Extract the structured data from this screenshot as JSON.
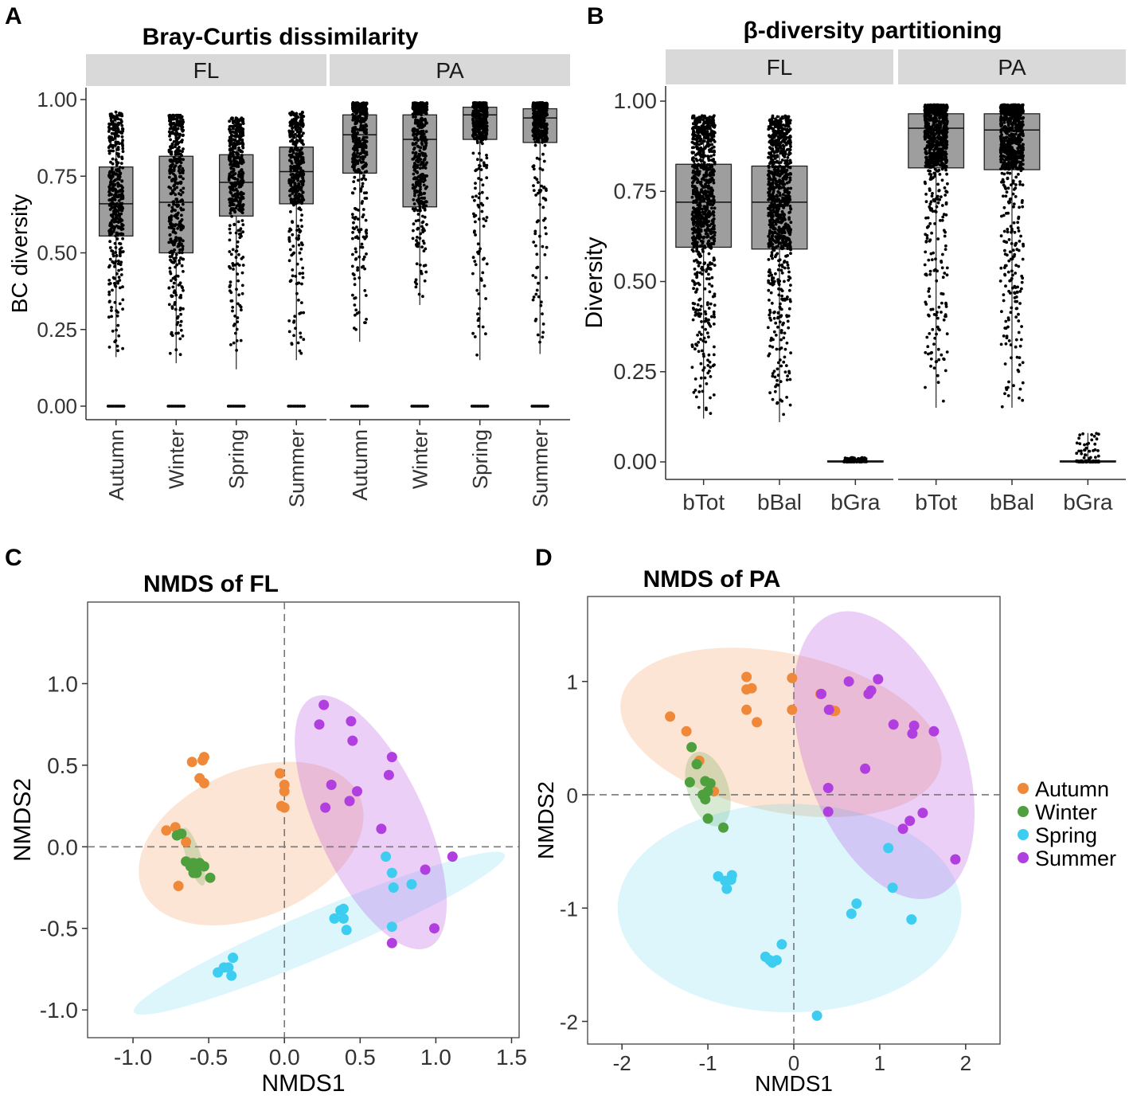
{
  "panels": {
    "A": {
      "letter": "A",
      "title": "Bray-Curtis dissimilarity"
    },
    "B": {
      "letter": "B",
      "title": "β-diversity partitioning"
    },
    "C": {
      "letter": "C",
      "title": "NMDS of FL"
    },
    "D": {
      "letter": "D",
      "title": "NMDS of PA"
    }
  },
  "chart_data": [
    {
      "id": "A",
      "type": "box",
      "title": "Bray-Curtis dissimilarity",
      "ylabel": "BC diversity",
      "xlabel": "",
      "ylim": [
        0,
        1
      ],
      "yticks": [
        "0.00",
        "0.25",
        "0.50",
        "0.75",
        "1.00"
      ],
      "facets": [
        "FL",
        "PA"
      ],
      "categories": [
        "Autumn",
        "Winter",
        "Spring",
        "Summer"
      ],
      "series": [
        {
          "facet": "FL",
          "boxes": [
            {
              "category": "Autumn",
              "q1": 0.555,
              "median": 0.66,
              "q3": 0.78,
              "min": 0.16,
              "max": 0.96,
              "zeros": true
            },
            {
              "category": "Winter",
              "q1": 0.5,
              "median": 0.665,
              "q3": 0.815,
              "min": 0.14,
              "max": 0.95,
              "zeros": true
            },
            {
              "category": "Spring",
              "q1": 0.62,
              "median": 0.73,
              "q3": 0.82,
              "min": 0.12,
              "max": 0.94,
              "zeros": true
            },
            {
              "category": "Summer",
              "q1": 0.66,
              "median": 0.765,
              "q3": 0.845,
              "min": 0.15,
              "max": 0.96,
              "zeros": true
            }
          ]
        },
        {
          "facet": "PA",
          "boxes": [
            {
              "category": "Autumn",
              "q1": 0.76,
              "median": 0.885,
              "q3": 0.95,
              "min": 0.21,
              "max": 0.99,
              "zeros": true
            },
            {
              "category": "Winter",
              "q1": 0.65,
              "median": 0.87,
              "q3": 0.95,
              "min": 0.33,
              "max": 0.99,
              "zeros": true
            },
            {
              "category": "Spring",
              "q1": 0.87,
              "median": 0.95,
              "q3": 0.975,
              "min": 0.15,
              "max": 0.99,
              "zeros": true
            },
            {
              "category": "Summer",
              "q1": 0.86,
              "median": 0.94,
              "q3": 0.97,
              "min": 0.17,
              "max": 0.99,
              "zeros": true
            }
          ]
        }
      ]
    },
    {
      "id": "B",
      "type": "box",
      "title": "β-diversity partitioning",
      "ylabel": "Diversity",
      "xlabel": "",
      "ylim": [
        0,
        1
      ],
      "yticks": [
        "0.00",
        "0.25",
        "0.50",
        "0.75",
        "1.00"
      ],
      "facets": [
        "FL",
        "PA"
      ],
      "categories": [
        "bTot",
        "bBal",
        "bGra"
      ],
      "series": [
        {
          "facet": "FL",
          "boxes": [
            {
              "category": "bTot",
              "q1": 0.595,
              "median": 0.72,
              "q3": 0.825,
              "min": 0.12,
              "max": 0.96
            },
            {
              "category": "bBal",
              "q1": 0.59,
              "median": 0.72,
              "q3": 0.82,
              "min": 0.11,
              "max": 0.96
            },
            {
              "category": "bGra",
              "q1": 0.0,
              "median": 0.0,
              "q3": 0.003,
              "min": 0.0,
              "max": 0.012
            }
          ]
        },
        {
          "facet": "PA",
          "boxes": [
            {
              "category": "bTot",
              "q1": 0.815,
              "median": 0.925,
              "q3": 0.965,
              "min": 0.15,
              "max": 0.99
            },
            {
              "category": "bBal",
              "q1": 0.81,
              "median": 0.92,
              "q3": 0.965,
              "min": 0.15,
              "max": 0.99
            },
            {
              "category": "bGra",
              "q1": 0.0,
              "median": 0.0,
              "q3": 0.003,
              "min": 0.0,
              "max": 0.08
            }
          ]
        }
      ]
    },
    {
      "id": "C",
      "type": "scatter",
      "title": "NMDS of FL",
      "xlabel": "NMDS1",
      "ylabel": "NMDS2",
      "xlim": [
        -1.3,
        1.55
      ],
      "ylim": [
        -1.17,
        1.5
      ],
      "xticks": [
        "-1.0",
        "-0.5",
        "0.0",
        "0.5",
        "1.0",
        "1.5"
      ],
      "yticks": [
        "-1.0",
        "-0.5",
        "0.0",
        "0.5",
        "1.0"
      ],
      "series": [
        {
          "name": "Autumn",
          "color": "#F0883A",
          "ellipse": {
            "cx": -0.22,
            "cy": 0.02,
            "rx": 0.78,
            "ry": 0.45,
            "angle_deg": 23
          },
          "points": [
            [
              -0.61,
              0.52
            ],
            [
              -0.54,
              0.53
            ],
            [
              -0.53,
              0.55
            ],
            [
              -0.56,
              0.42
            ],
            [
              -0.53,
              0.39
            ],
            [
              -0.78,
              0.1
            ],
            [
              -0.72,
              0.12
            ],
            [
              -0.65,
              0.03
            ],
            [
              -0.7,
              -0.24
            ],
            [
              -0.62,
              -0.1
            ],
            [
              -0.03,
              0.45
            ],
            [
              0.0,
              0.38
            ],
            [
              0.0,
              0.34
            ],
            [
              -0.02,
              0.25
            ],
            [
              0.0,
              0.24
            ]
          ]
        },
        {
          "name": "Winter",
          "color": "#4E9F3D",
          "ellipse": {
            "cx": -0.6,
            "cy": -0.06,
            "rx": 0.2,
            "ry": 0.045,
            "angle_deg": -72
          },
          "points": [
            [
              -0.71,
              0.07
            ],
            [
              -0.68,
              0.08
            ],
            [
              -0.65,
              -0.09
            ],
            [
              -0.62,
              -0.12
            ],
            [
              -0.6,
              -0.16
            ],
            [
              -0.58,
              -0.12
            ],
            [
              -0.56,
              -0.1
            ],
            [
              -0.53,
              -0.12
            ],
            [
              -0.49,
              -0.19
            ],
            [
              -0.6,
              -0.1
            ],
            [
              -0.58,
              -0.16
            ]
          ]
        },
        {
          "name": "Spring",
          "color": "#3CCDF0",
          "ellipse": {
            "cx": 0.23,
            "cy": -0.53,
            "rx": 1.33,
            "ry": 0.14,
            "angle_deg": 23
          },
          "points": [
            [
              -0.44,
              -0.77
            ],
            [
              -0.4,
              -0.74
            ],
            [
              -0.37,
              -0.74
            ],
            [
              -0.35,
              -0.79
            ],
            [
              -0.34,
              -0.68
            ],
            [
              0.33,
              -0.44
            ],
            [
              0.37,
              -0.39
            ],
            [
              0.39,
              -0.38
            ],
            [
              0.39,
              -0.44
            ],
            [
              0.41,
              -0.51
            ],
            [
              0.67,
              -0.06
            ],
            [
              0.71,
              -0.16
            ],
            [
              0.72,
              -0.25
            ],
            [
              0.84,
              -0.23
            ],
            [
              0.71,
              -0.49
            ]
          ]
        },
        {
          "name": "Summer",
          "color": "#B13FE0",
          "ellipse": {
            "cx": 0.57,
            "cy": 0.15,
            "rx": 0.91,
            "ry": 0.33,
            "angle_deg": -65
          },
          "points": [
            [
              0.23,
              0.75
            ],
            [
              0.26,
              0.87
            ],
            [
              0.44,
              0.77
            ],
            [
              0.45,
              0.65
            ],
            [
              0.31,
              0.38
            ],
            [
              0.27,
              0.24
            ],
            [
              0.43,
              0.28
            ],
            [
              0.48,
              0.34
            ],
            [
              0.71,
              0.55
            ],
            [
              0.69,
              0.44
            ],
            [
              0.64,
              0.11
            ],
            [
              0.93,
              -0.14
            ],
            [
              1.11,
              -0.06
            ],
            [
              0.71,
              -0.59
            ],
            [
              0.99,
              -0.5
            ]
          ]
        }
      ]
    },
    {
      "id": "D",
      "type": "scatter",
      "title": "NMDS of PA",
      "xlabel": "NMDS1",
      "ylabel": "NMDS2",
      "xlim": [
        -2.4,
        2.4
      ],
      "ylim": [
        -2.2,
        1.75
      ],
      "xticks": [
        "-2",
        "-1",
        "0",
        "1",
        "2"
      ],
      "yticks": [
        "-2",
        "-1",
        "0",
        "1"
      ],
      "series": [
        {
          "name": "Autumn",
          "color": "#F0883A",
          "ellipse": {
            "cx": -0.15,
            "cy": 0.55,
            "rx": 1.9,
            "ry": 0.7,
            "angle_deg": -12
          },
          "points": [
            [
              -1.44,
              0.69
            ],
            [
              -1.25,
              0.56
            ],
            [
              -1.1,
              0.3
            ],
            [
              -0.93,
              0.03
            ],
            [
              -0.55,
              1.04
            ],
            [
              -0.55,
              0.93
            ],
            [
              -0.49,
              0.94
            ],
            [
              -0.55,
              0.75
            ],
            [
              -0.43,
              0.64
            ],
            [
              -0.02,
              1.03
            ],
            [
              -0.02,
              0.75
            ],
            [
              0.31,
              0.89
            ],
            [
              0.43,
              0.75
            ],
            [
              0.46,
              0.74
            ],
            [
              0.48,
              0.74
            ]
          ]
        },
        {
          "name": "Winter",
          "color": "#4E9F3D",
          "ellipse": {
            "cx": -1.0,
            "cy": 0.05,
            "rx": 0.45,
            "ry": 0.18,
            "angle_deg": -72
          },
          "points": [
            [
              -1.19,
              0.42
            ],
            [
              -1.21,
              0.11
            ],
            [
              -1.13,
              0.27
            ],
            [
              -1.03,
              0.12
            ],
            [
              -0.97,
              0.1
            ],
            [
              -1.06,
              0.0
            ],
            [
              -1.03,
              -0.04
            ],
            [
              -1.0,
              0.03
            ],
            [
              -1.0,
              -0.21
            ],
            [
              -0.82,
              -0.29
            ]
          ]
        },
        {
          "name": "Spring",
          "color": "#3CCDF0",
          "ellipse": {
            "cx": -0.05,
            "cy": -1.0,
            "rx": 2.0,
            "ry": 0.92,
            "angle_deg": 0
          },
          "points": [
            [
              -0.88,
              -0.72
            ],
            [
              -0.8,
              -0.76
            ],
            [
              -0.73,
              -0.75
            ],
            [
              -0.72,
              -0.71
            ],
            [
              -0.78,
              -0.83
            ],
            [
              -0.33,
              -1.43
            ],
            [
              -0.28,
              -1.46
            ],
            [
              -0.25,
              -1.48
            ],
            [
              -0.2,
              -1.46
            ],
            [
              -0.14,
              -1.32
            ],
            [
              0.27,
              -1.95
            ],
            [
              0.73,
              -0.96
            ],
            [
              0.67,
              -1.05
            ],
            [
              1.1,
              -0.47
            ],
            [
              1.15,
              -0.82
            ],
            [
              1.37,
              -1.1
            ]
          ]
        },
        {
          "name": "Summer",
          "color": "#B13FE0",
          "ellipse": {
            "cx": 1.05,
            "cy": 0.35,
            "rx": 1.75,
            "ry": 0.7,
            "angle_deg": -70
          },
          "points": [
            [
              0.32,
              0.89
            ],
            [
              0.41,
              0.75
            ],
            [
              0.64,
              1.0
            ],
            [
              0.87,
              0.89
            ],
            [
              0.9,
              0.92
            ],
            [
              0.98,
              1.02
            ],
            [
              1.16,
              0.62
            ],
            [
              1.4,
              0.61
            ],
            [
              1.38,
              0.54
            ],
            [
              1.63,
              0.56
            ],
            [
              0.4,
              0.06
            ],
            [
              0.4,
              -0.15
            ],
            [
              0.83,
              0.23
            ],
            [
              1.35,
              -0.23
            ],
            [
              1.5,
              -0.16
            ],
            [
              1.27,
              -0.3
            ],
            [
              1.88,
              -0.57
            ]
          ]
        }
      ]
    }
  ]
}
